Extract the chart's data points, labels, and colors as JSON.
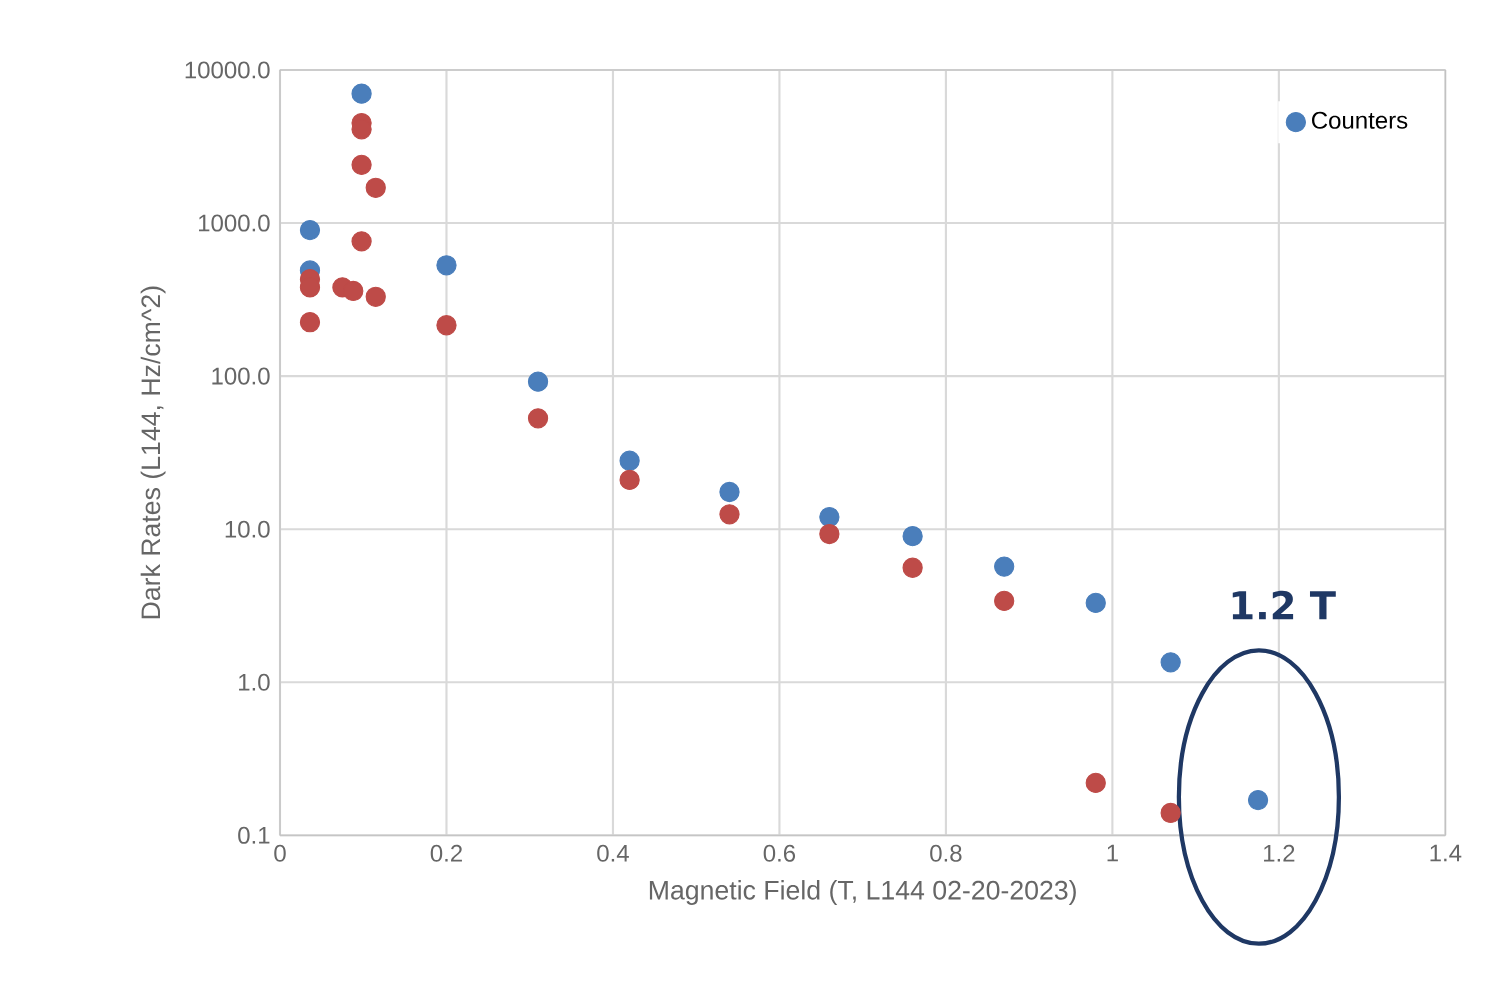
{
  "chart_data": {
    "type": "scatter",
    "xlabel": "Magnetic Field (T, L144 02-20-2023)",
    "ylabel": "Dark Rates (L144, Hz/cm^2)",
    "xlim": [
      0,
      1.4
    ],
    "xticks": [
      0,
      0.2,
      0.4,
      0.6,
      0.8,
      1,
      1.2,
      1.4
    ],
    "ylim": [
      0.1,
      10000
    ],
    "yticks": [
      {
        "value": 0.1,
        "label": "0.1"
      },
      {
        "value": 1,
        "label": "1.0"
      },
      {
        "value": 10,
        "label": "10.0"
      },
      {
        "value": 100,
        "label": "100.0"
      },
      {
        "value": 1000,
        "label": "1000.0"
      },
      {
        "value": 10000,
        "label": "10000.0"
      }
    ],
    "log": "y",
    "grid": true,
    "legend": "top right",
    "marker": "circle",
    "series": [
      {
        "name": "Counters",
        "color": "#4a7ebb",
        "x": [
          0.036,
          0.036,
          0.098,
          0.2,
          0.31,
          0.42,
          0.54,
          0.66,
          0.76,
          0.87,
          0.98,
          1.07,
          1.175
        ],
        "values": [
          900,
          490,
          7000,
          530,
          92,
          28,
          17.5,
          12,
          9,
          5.7,
          3.3,
          1.35,
          0.17
        ]
      },
      {
        "color": "#be4b48",
        "x": [
          0.036,
          0.036,
          0.036,
          0.075,
          0.088,
          0.098,
          0.098,
          0.098,
          0.098,
          0.115,
          0.115,
          0.2,
          0.31,
          0.42,
          0.54,
          0.66,
          0.76,
          0.87,
          0.98,
          1.07
        ],
        "values": [
          430,
          380,
          225,
          380,
          360,
          4500,
          4100,
          2400,
          760,
          1700,
          330,
          215,
          53,
          21,
          12.5,
          9.3,
          5.6,
          3.4,
          0.22,
          0.14
        ]
      }
    ],
    "annotations": [
      "1.2 T"
    ]
  }
}
